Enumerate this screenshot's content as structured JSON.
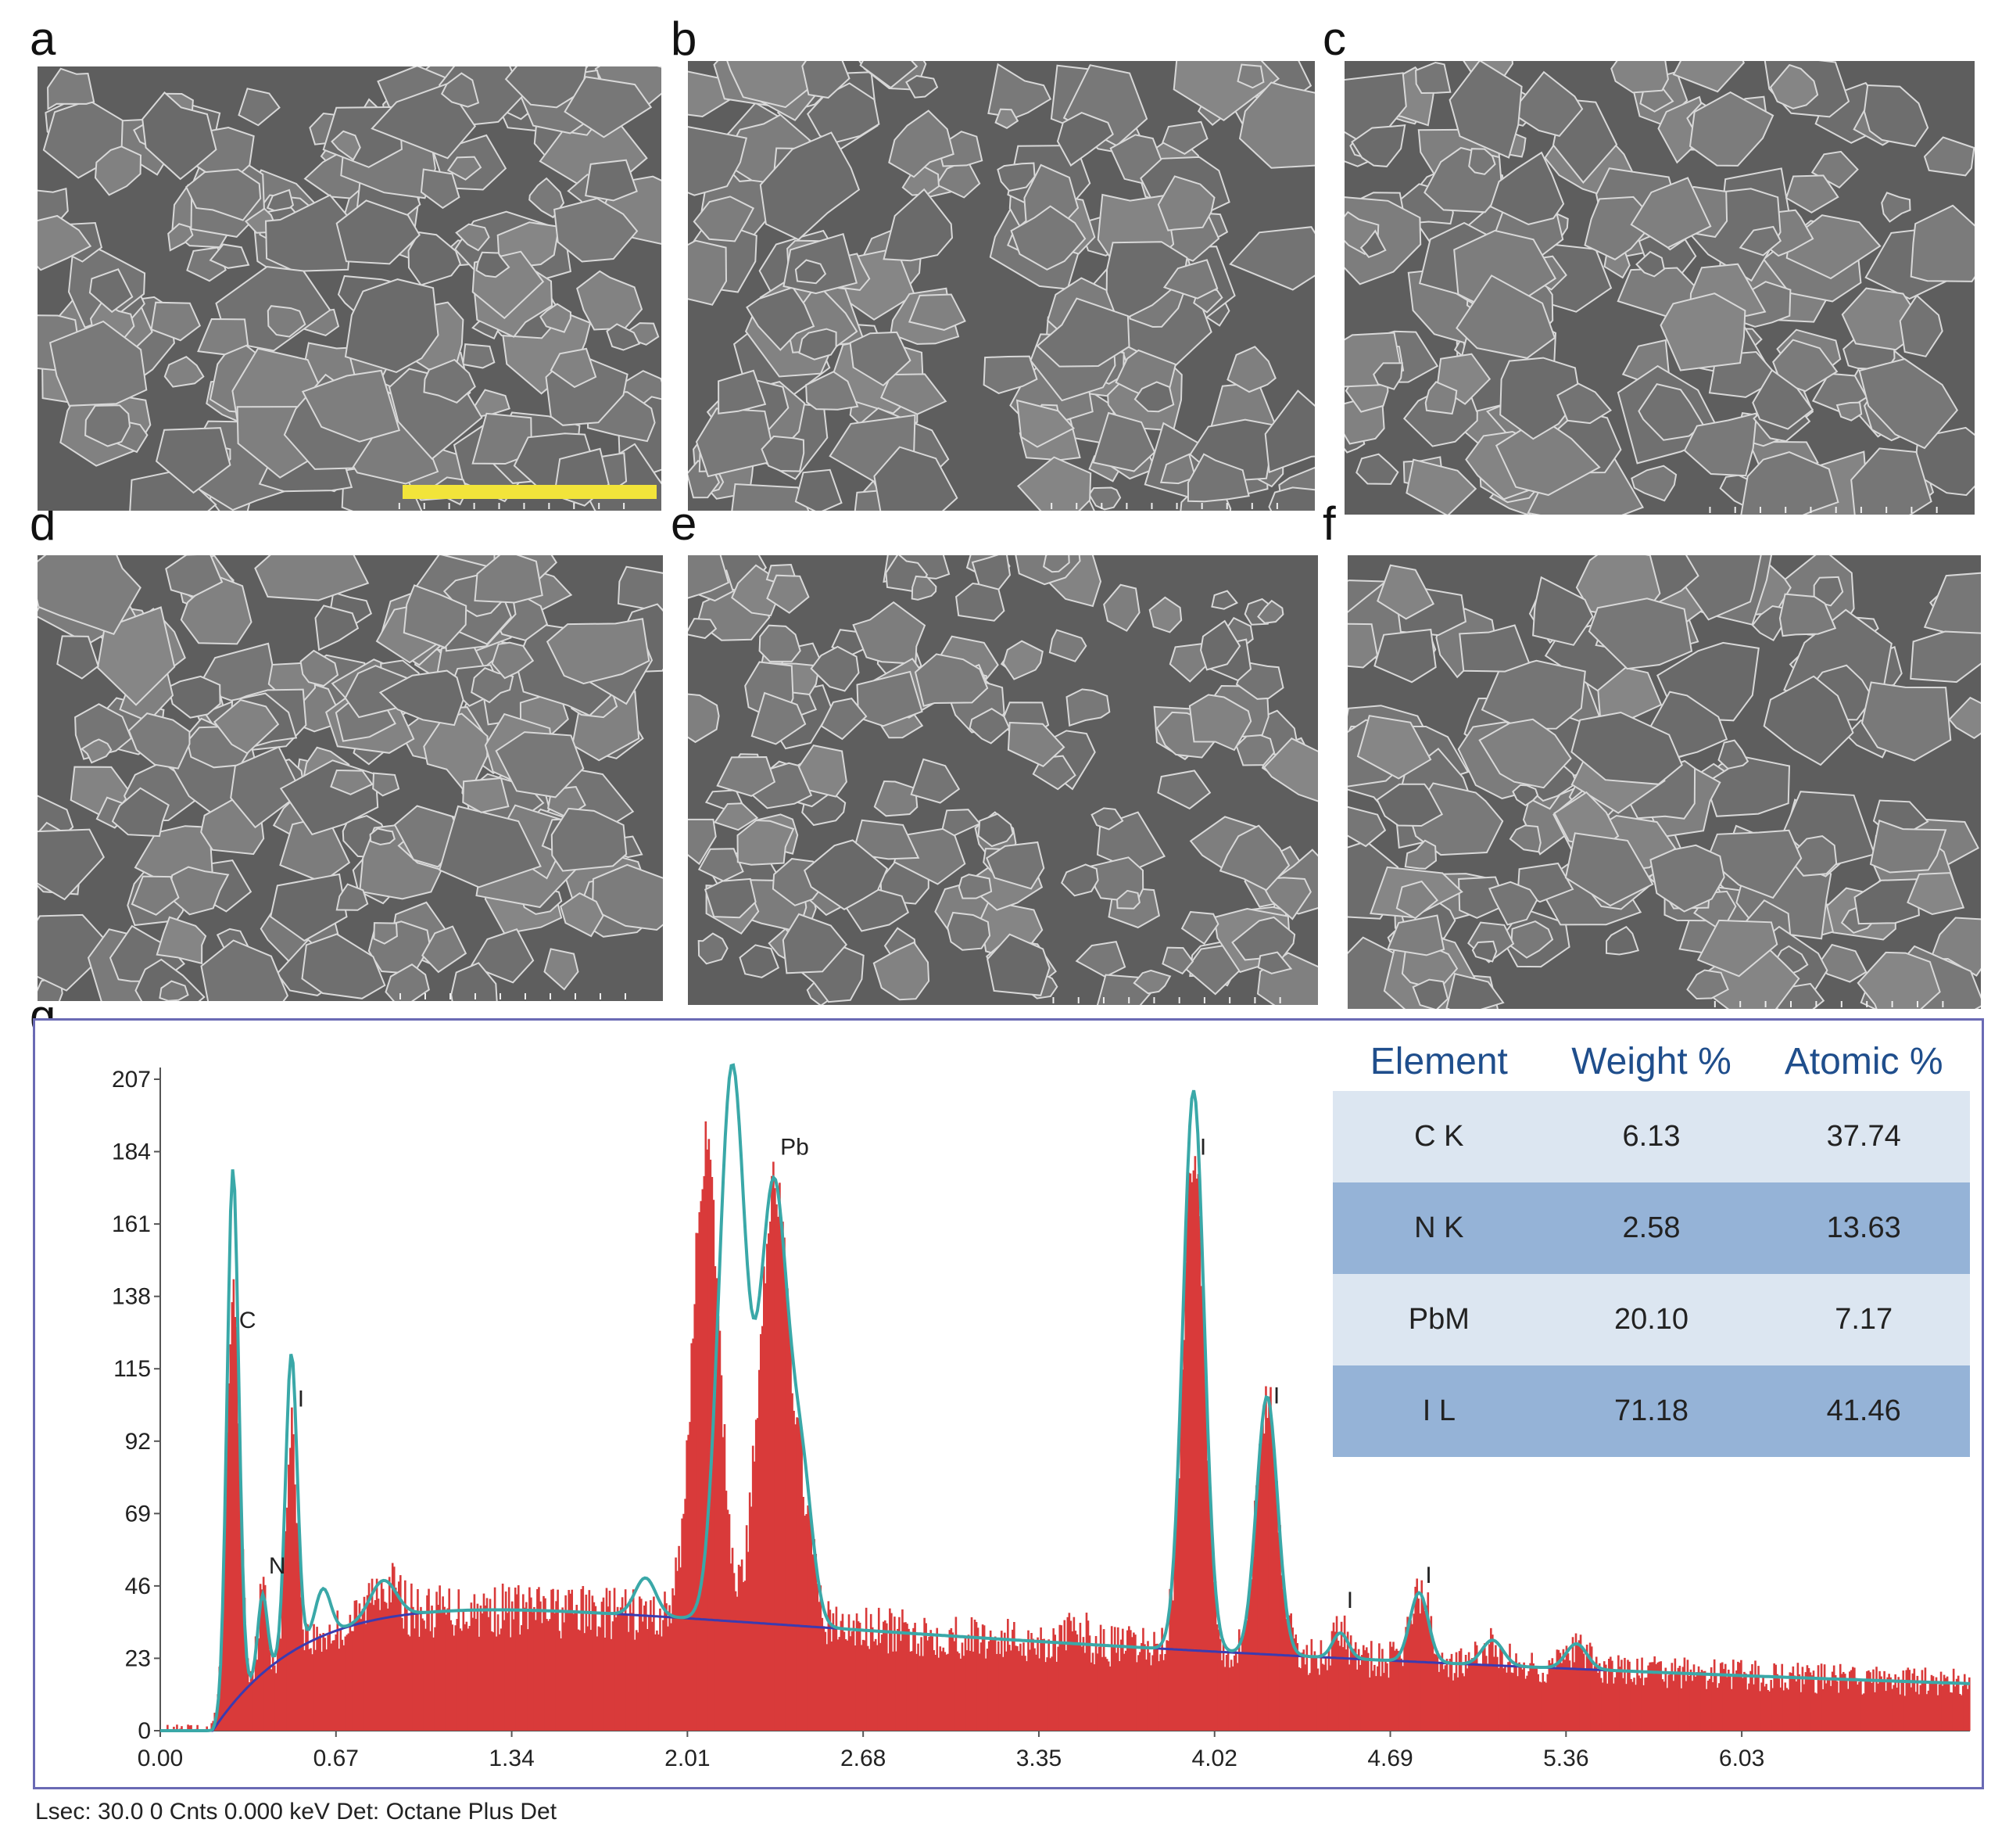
{
  "panels": [
    {
      "label": "a"
    },
    {
      "label": "b"
    },
    {
      "label": "c"
    },
    {
      "label": "d"
    },
    {
      "label": "e"
    },
    {
      "label": "f"
    }
  ],
  "spectrum_label": "g",
  "table": {
    "headers": [
      "Element",
      "Weight %",
      "Atomic %"
    ],
    "rows": [
      {
        "element": "C K",
        "weight": "6.13",
        "atomic": "37.74"
      },
      {
        "element": "N K",
        "weight": "2.58",
        "atomic": "13.63"
      },
      {
        "element": "PbM",
        "weight": "20.10",
        "atomic": "7.17"
      },
      {
        "element": "I L",
        "weight": "71.18",
        "atomic": "41.46"
      }
    ]
  },
  "footer": "Lsec: 30.0 0 Cnts  0.000 keV Det: Octane Plus Det",
  "colors": {
    "counts_fill": "#d93a3a",
    "fit_line": "#3aa8a8",
    "background_line": "#3b3bb0",
    "frame": "#6a6ab4",
    "scale_bar": "#f2e43a"
  },
  "chart_data": {
    "type": "area",
    "xlabel": "",
    "ylabel": "",
    "xlim": [
      0,
      6.6
    ],
    "ylim": [
      0,
      210
    ],
    "x_ticks": [
      "0.00",
      "0.67",
      "1.34",
      "2.01",
      "2.68",
      "3.35",
      "4.02",
      "4.69",
      "5.36",
      "6.03"
    ],
    "y_ticks": [
      "0",
      "23",
      "46",
      "69",
      "92",
      "115",
      "138",
      "161",
      "184",
      "207"
    ],
    "peaks": [
      {
        "label": "C",
        "x": 0.277,
        "y": 125
      },
      {
        "label": "N",
        "x": 0.39,
        "y": 47
      },
      {
        "label": "I",
        "x": 0.5,
        "y": 100
      },
      {
        "label": "Pb",
        "x": 2.34,
        "y": 180
      },
      {
        "label": "I",
        "x": 3.94,
        "y": 180
      },
      {
        "label": "I",
        "x": 4.22,
        "y": 101
      },
      {
        "label": "I",
        "x": 4.5,
        "y": 36
      },
      {
        "label": "I",
        "x": 4.8,
        "y": 44
      }
    ],
    "series": [
      {
        "values": "measured counts (red histogram)"
      },
      {
        "values": "fit (teal line)"
      },
      {
        "values": "background (blue line)"
      }
    ]
  }
}
